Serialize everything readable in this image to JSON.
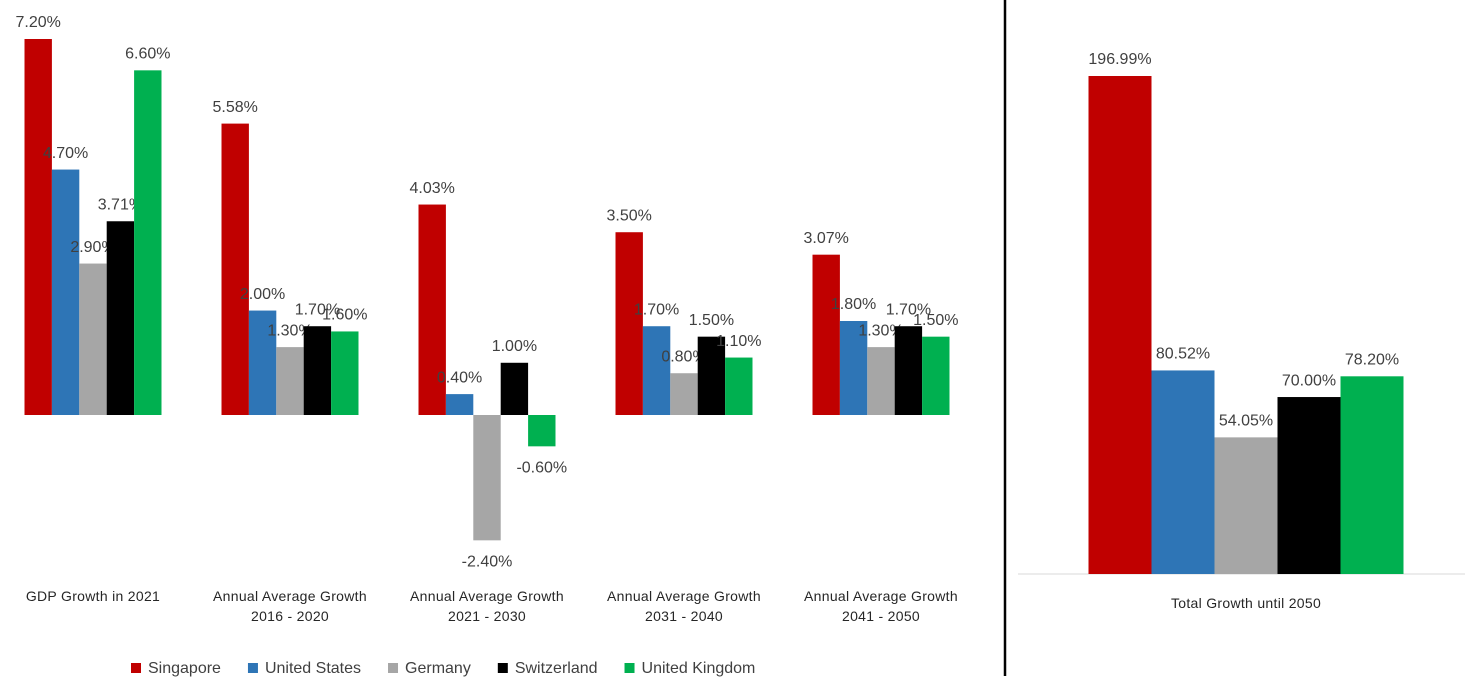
{
  "chart_data": [
    {
      "type": "bar",
      "categories": [
        "GDP Growth in 2021",
        "Annual Average Growth 2016 - 2020",
        "Annual Average Growth 2021 - 2030",
        "Annual Average Growth 2031 - 2040",
        "Annual Average Growth 2041 - 2050"
      ],
      "series": [
        {
          "name": "Singapore",
          "color": "#c00000",
          "values": [
            7.2,
            5.58,
            4.03,
            3.5,
            3.07
          ],
          "value_labels": [
            "7.20%",
            "5.58%",
            "4.03%",
            "3.50%",
            "3.07%"
          ]
        },
        {
          "name": "United States",
          "color": "#2e75b6",
          "values": [
            4.7,
            2.0,
            0.4,
            1.7,
            1.8
          ],
          "value_labels": [
            "4.70%",
            "2.00%",
            "0.40%",
            "1.70%",
            "1.80%"
          ]
        },
        {
          "name": "Germany",
          "color": "#a6a6a6",
          "values": [
            2.9,
            1.3,
            -2.4,
            0.8,
            1.3
          ],
          "value_labels": [
            "2.90%",
            "1.30%",
            "-2.40%",
            "0.80%",
            "1.30%"
          ]
        },
        {
          "name": "Switzerland",
          "color": "#000000",
          "values": [
            3.71,
            1.7,
            1.0,
            1.5,
            1.7
          ],
          "value_labels": [
            "3.71%",
            "1.70%",
            "1.00%",
            "1.50%",
            "1.70%"
          ]
        },
        {
          "name": "United Kingdom",
          "color": "#00b050",
          "values": [
            6.6,
            1.6,
            -0.6,
            1.1,
            1.5
          ],
          "value_labels": [
            "6.60%",
            "1.60%",
            "-0.60%",
            "1.10%",
            "1.50%"
          ]
        }
      ]
    },
    {
      "type": "bar",
      "categories": [
        "Total Growth until 2050"
      ],
      "series": [
        {
          "color": "#c00000",
          "values": [
            196.99
          ],
          "value_labels": [
            "196.99%"
          ]
        },
        {
          "color": "#2e75b6",
          "values": [
            80.52
          ],
          "value_labels": [
            "80.52%"
          ]
        },
        {
          "color": "#a6a6a6",
          "values": [
            54.05
          ],
          "value_labels": [
            "54.05%"
          ]
        },
        {
          "color": "#000000",
          "values": [
            70.0
          ],
          "value_labels": [
            "70.00%"
          ]
        },
        {
          "color": "#00b050",
          "values": [
            78.2
          ],
          "value_labels": [
            "78.20%"
          ]
        }
      ]
    }
  ]
}
